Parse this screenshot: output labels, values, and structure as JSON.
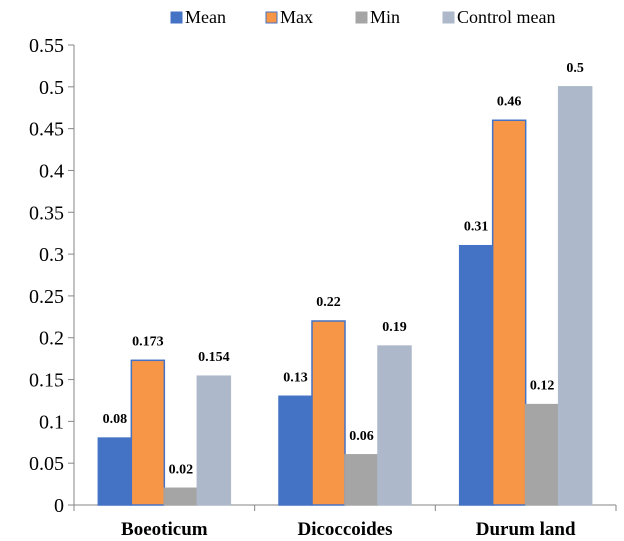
{
  "chart_data": {
    "type": "bar",
    "categories": [
      "Boeoticum",
      "Dicoccoides",
      "Durum land"
    ],
    "series": [
      {
        "name": "Mean",
        "values": [
          0.08,
          0.13,
          0.31
        ],
        "labels": [
          "0.08",
          "0.13",
          "0.31"
        ],
        "color": "#4472C4",
        "stroke": "#4472C4"
      },
      {
        "name": "Max",
        "values": [
          0.173,
          0.22,
          0.46
        ],
        "labels": [
          "0.173",
          "0.22",
          "0.46"
        ],
        "color": "#F79646",
        "stroke": "#4472C4"
      },
      {
        "name": "Min",
        "values": [
          0.02,
          0.06,
          0.12
        ],
        "labels": [
          "0.02",
          "0.06",
          "0.12"
        ],
        "color": "#A5A5A5",
        "stroke": "#A5A5A5"
      },
      {
        "name": "Control mean",
        "values": [
          0.154,
          0.19,
          0.5
        ],
        "labels": [
          "0.154",
          "0.19",
          "0.5"
        ],
        "color": "#ADB9CA",
        "stroke": "#ADB9CA"
      }
    ],
    "yticks": [
      "0",
      "0.05",
      "0.1",
      "0.15",
      "0.2",
      "0.25",
      "0.3",
      "0.35",
      "0.4",
      "0.45",
      "0.5",
      "0.55"
    ],
    "ylim": [
      0,
      0.55
    ],
    "grid": false,
    "legend_position": "top"
  }
}
